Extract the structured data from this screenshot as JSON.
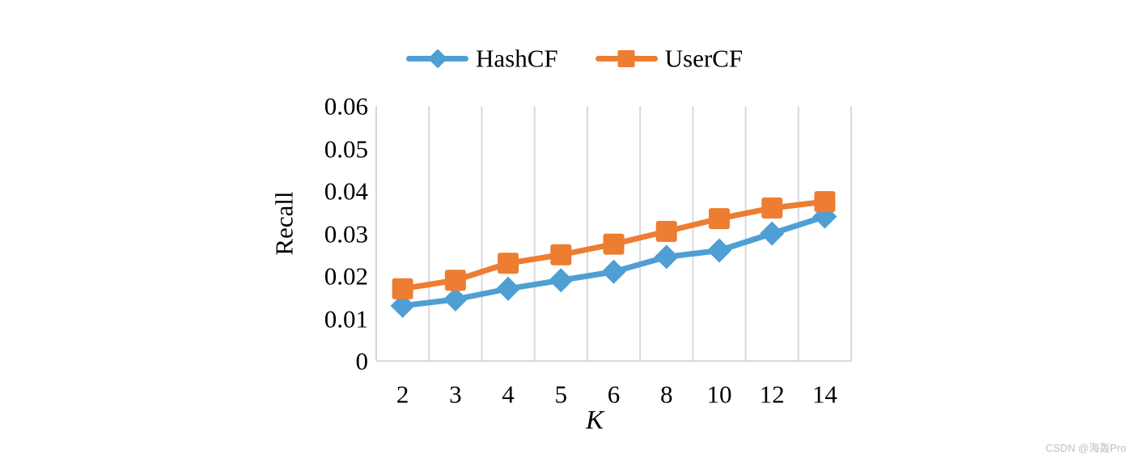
{
  "watermark": "CSDN @海轰Pro",
  "chart_data": {
    "type": "line",
    "title": "",
    "xlabel": "K",
    "ylabel": "Recall",
    "categories": [
      "2",
      "3",
      "4",
      "5",
      "6",
      "8",
      "10",
      "12",
      "14"
    ],
    "series": [
      {
        "name": "HashCF",
        "marker": "diamond",
        "color": "#4E9FD3",
        "values": [
          0.013,
          0.0145,
          0.017,
          0.019,
          0.021,
          0.0245,
          0.026,
          0.03,
          0.034
        ]
      },
      {
        "name": "UserCF",
        "marker": "square",
        "color": "#ED7D31",
        "values": [
          0.017,
          0.019,
          0.023,
          0.025,
          0.0275,
          0.0305,
          0.0335,
          0.036,
          0.0375
        ]
      }
    ],
    "ylim": [
      0,
      0.06
    ],
    "y_tick_values": [
      0,
      0.01,
      0.02,
      0.03,
      0.04,
      0.05,
      0.06
    ],
    "y_tick_labels": [
      "0",
      "0.01",
      "0.02",
      "0.03",
      "0.04",
      "0.05",
      "0.06"
    ],
    "grid": "vertical",
    "grid_color": "#D9D9D9",
    "axis_color": "#D9D9D9",
    "legend_position": "top-center"
  }
}
